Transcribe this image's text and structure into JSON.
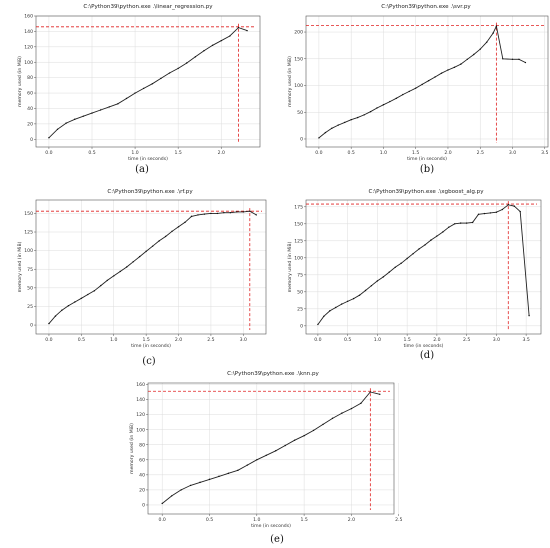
{
  "chart_data": [
    {
      "type": "line",
      "title": "C:\\Python39\\python.exe .\\linear_regression.py",
      "caption": "(a)",
      "xlabel": "time (in seconds)",
      "ylabel": "memory used (in MiB)",
      "xlim": [
        -0.15,
        2.45
      ],
      "ylim": [
        -10,
        160
      ],
      "xticks": [
        "0.0",
        "0.5",
        "1.0",
        "1.5",
        "2.0"
      ],
      "xtick_values": [
        0,
        0.5,
        1,
        1.5,
        2
      ],
      "yticks": [
        "0",
        "20",
        "40",
        "60",
        "80",
        "100",
        "120",
        "140",
        "160"
      ],
      "ytick_values": [
        0,
        20,
        40,
        60,
        80,
        100,
        120,
        140,
        160
      ],
      "grid": true,
      "x": [
        0,
        0.1,
        0.2,
        0.3,
        0.4,
        0.5,
        0.6,
        0.7,
        0.8,
        0.9,
        1.0,
        1.1,
        1.2,
        1.3,
        1.4,
        1.5,
        1.6,
        1.7,
        1.8,
        1.9,
        2.0,
        2.1,
        2.2,
        2.3
      ],
      "y": [
        2,
        13,
        21,
        26,
        30,
        34,
        38,
        42,
        46,
        53,
        60,
        66,
        72,
        79,
        86,
        92,
        99,
        107,
        115,
        122,
        128,
        134,
        145,
        141
      ],
      "peak_x": 2.2,
      "peak_y": 146
    },
    {
      "type": "line",
      "title": "C:\\Python39\\python.exe .\\svr.py",
      "caption": "(b)",
      "xlabel": "time (in seconds)",
      "ylabel": "memory used (in MiB)",
      "xlim": [
        -0.2,
        3.55
      ],
      "ylim": [
        -15,
        230
      ],
      "xticks": [
        "0.0",
        "0.5",
        "1.0",
        "1.5",
        "2.0",
        "2.5",
        "3.0",
        "3.5"
      ],
      "xtick_values": [
        0,
        0.5,
        1,
        1.5,
        2,
        2.5,
        3,
        3.5
      ],
      "yticks": [
        "0",
        "50",
        "100",
        "150",
        "200"
      ],
      "ytick_values": [
        0,
        50,
        100,
        150,
        200
      ],
      "grid": true,
      "x": [
        0,
        0.1,
        0.2,
        0.3,
        0.4,
        0.5,
        0.6,
        0.7,
        0.8,
        0.9,
        1.0,
        1.1,
        1.2,
        1.3,
        1.4,
        1.5,
        1.6,
        1.7,
        1.8,
        1.9,
        2.0,
        2.1,
        2.2,
        2.3,
        2.4,
        2.5,
        2.6,
        2.7,
        2.75,
        2.85,
        3.0,
        3.1,
        3.2
      ],
      "y": [
        2,
        12,
        20,
        26,
        31,
        36,
        40,
        45,
        51,
        58,
        64,
        70,
        76,
        83,
        89,
        95,
        102,
        109,
        116,
        123,
        129,
        134,
        140,
        149,
        158,
        168,
        181,
        198,
        211,
        150,
        149,
        149,
        143
      ],
      "peak_x": 2.75,
      "peak_y": 212
    },
    {
      "type": "line",
      "title": "C:\\Python39\\python.exe .\\rf.py",
      "caption": "(c)",
      "xlabel": "time (in seconds)",
      "ylabel": "memory used (in MiB)",
      "xlim": [
        -0.2,
        3.35
      ],
      "ylim": [
        -12,
        168
      ],
      "xticks": [
        "0.0",
        "0.5",
        "1.0",
        "1.5",
        "2.0",
        "2.5",
        "3.0"
      ],
      "xtick_values": [
        0,
        0.5,
        1,
        1.5,
        2,
        2.5,
        3
      ],
      "yticks": [
        "0",
        "25",
        "50",
        "75",
        "100",
        "125",
        "150"
      ],
      "ytick_values": [
        0,
        25,
        50,
        75,
        100,
        125,
        150
      ],
      "grid": true,
      "x": [
        0,
        0.1,
        0.2,
        0.3,
        0.4,
        0.5,
        0.6,
        0.7,
        0.8,
        0.9,
        1.0,
        1.1,
        1.2,
        1.3,
        1.4,
        1.5,
        1.6,
        1.7,
        1.8,
        1.9,
        2.0,
        2.1,
        2.2,
        2.3,
        2.4,
        2.5,
        2.6,
        2.7,
        2.8,
        2.9,
        3.0,
        3.1,
        3.2
      ],
      "y": [
        2,
        12,
        20,
        26,
        31,
        36,
        41,
        46,
        53,
        60,
        66,
        72,
        78,
        85,
        92,
        99,
        106,
        113,
        119,
        126,
        132,
        138,
        146,
        148,
        149,
        150,
        150,
        151,
        151,
        152,
        152,
        153,
        148
      ],
      "peak_x": 3.1,
      "peak_y": 153
    },
    {
      "type": "line",
      "title": "C:\\Python39\\python.exe .\\xgboost_alg.py",
      "caption": "(d)",
      "xlabel": "time (in seconds)",
      "ylabel": "memory used (in MiB)",
      "xlim": [
        -0.2,
        3.75
      ],
      "ylim": [
        -12,
        185
      ],
      "xticks": [
        "0.0",
        "0.5",
        "1.0",
        "1.5",
        "2.0",
        "2.5",
        "3.0",
        "3.5"
      ],
      "xtick_values": [
        0,
        0.5,
        1,
        1.5,
        2,
        2.5,
        3,
        3.5
      ],
      "yticks": [
        "0",
        "25",
        "50",
        "75",
        "100",
        "125",
        "150",
        "175"
      ],
      "ytick_values": [
        0,
        25,
        50,
        75,
        100,
        125,
        150,
        175
      ],
      "grid": true,
      "x": [
        0,
        0.1,
        0.2,
        0.3,
        0.4,
        0.5,
        0.6,
        0.7,
        0.8,
        0.9,
        1.0,
        1.1,
        1.2,
        1.3,
        1.4,
        1.5,
        1.6,
        1.7,
        1.8,
        1.9,
        2.0,
        2.1,
        2.2,
        2.3,
        2.4,
        2.5,
        2.6,
        2.7,
        2.8,
        2.9,
        3.0,
        3.1,
        3.2,
        3.3,
        3.4,
        3.55
      ],
      "y": [
        2,
        14,
        22,
        27,
        32,
        36,
        40,
        45,
        52,
        59,
        66,
        72,
        79,
        86,
        92,
        99,
        106,
        113,
        119,
        126,
        132,
        138,
        145,
        150,
        151,
        151,
        152,
        164,
        165,
        166,
        167,
        171,
        178,
        176,
        168,
        15
      ],
      "peak_x": 3.2,
      "peak_y": 179
    },
    {
      "type": "line",
      "title": "C:\\Python39\\python.exe .\\knn.py",
      "caption": "(e)",
      "xlabel": "time (in seconds)",
      "ylabel": "memory used (in MiB)",
      "xlim": [
        -0.15,
        2.45
      ],
      "ylim": [
        -12,
        162
      ],
      "xticks": [
        "0.0",
        "0.5",
        "1.0",
        "1.5",
        "2.0",
        "2.5"
      ],
      "xtick_values": [
        0,
        0.5,
        1,
        1.5,
        2,
        2.5
      ],
      "yticks": [
        "0",
        "20",
        "40",
        "60",
        "80",
        "100",
        "120",
        "140",
        "160"
      ],
      "ytick_values": [
        0,
        20,
        40,
        60,
        80,
        100,
        120,
        140,
        160
      ],
      "grid": true,
      "x": [
        0,
        0.1,
        0.2,
        0.3,
        0.4,
        0.5,
        0.6,
        0.7,
        0.8,
        0.9,
        1.0,
        1.1,
        1.2,
        1.3,
        1.4,
        1.5,
        1.6,
        1.7,
        1.8,
        1.9,
        2.0,
        2.1,
        2.2,
        2.3
      ],
      "y": [
        2,
        12,
        20,
        26,
        30,
        34,
        38,
        42,
        46,
        53,
        60,
        66,
        72,
        79,
        86,
        92,
        99,
        107,
        115,
        122,
        128,
        135,
        150,
        147
      ],
      "peak_x": 2.2,
      "peak_y": 151
    }
  ]
}
